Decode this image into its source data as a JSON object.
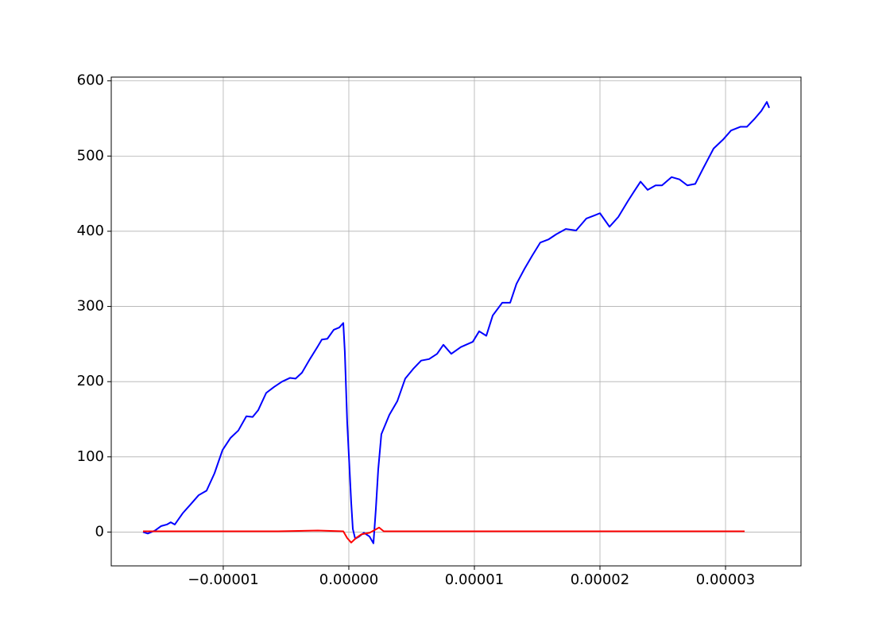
{
  "chart_data": {
    "type": "line",
    "xlim": [
      -1.892e-05,
      3.601e-05
    ],
    "ylim": [
      -45,
      605
    ],
    "xticks": [
      {
        "value": -1e-05,
        "label": "−0.00001"
      },
      {
        "value": 0,
        "label": "0.00000"
      },
      {
        "value": 1e-05,
        "label": "0.00001"
      },
      {
        "value": 2e-05,
        "label": "0.00002"
      },
      {
        "value": 3e-05,
        "label": "0.00003"
      }
    ],
    "yticks": [
      0,
      100,
      200,
      300,
      400,
      500,
      600
    ],
    "grid": true,
    "series": [
      {
        "color": "#0000ff",
        "x": [
          -1.639e-05,
          -1.601e-05,
          -1.544e-05,
          -1.494e-05,
          -1.449e-05,
          -1.418e-05,
          -1.386e-05,
          -1.323e-05,
          -1.259e-05,
          -1.196e-05,
          -1.133e-05,
          -1.07e-05,
          -1.006e-05,
          -9.43e-06,
          -8.8e-06,
          -8.16e-06,
          -7.66e-06,
          -7.22e-06,
          -6.58e-06,
          -5.95e-06,
          -5.32e-06,
          -4.68e-06,
          -4.24e-06,
          -3.73e-06,
          -3.1e-06,
          -2.47e-06,
          -2.15e-06,
          -1.71e-06,
          -1.2e-06,
          -7.6e-07,
          -4.4e-07,
          -3.2e-07,
          -1.3e-07,
          6e-08,
          1.9e-07,
          3.2e-07,
          5.1e-07,
          8.2e-07,
          1.2e-06,
          1.65e-06,
          1.96e-06,
          2.15e-06,
          2.34e-06,
          2.59e-06,
          2.91e-06,
          3.23e-06,
          3.86e-06,
          4.49e-06,
          5.13e-06,
          5.76e-06,
          6.39e-06,
          7.03e-06,
          7.53e-06,
          8.16e-06,
          8.92e-06,
          9.87e-06,
          1.038e-05,
          1.095e-05,
          1.146e-05,
          1.222e-05,
          1.285e-05,
          1.335e-05,
          1.399e-05,
          1.462e-05,
          1.525e-05,
          1.589e-05,
          1.652e-05,
          1.728e-05,
          1.81e-05,
          1.892e-05,
          1.956e-05,
          2e-05,
          2.076e-05,
          2.146e-05,
          2.222e-05,
          2.272e-05,
          2.323e-05,
          2.38e-05,
          2.443e-05,
          2.494e-05,
          2.57e-05,
          2.633e-05,
          2.696e-05,
          2.759e-05,
          2.823e-05,
          2.905e-05,
          2.981e-05,
          3.044e-05,
          3.12e-05,
          3.171e-05,
          3.234e-05,
          3.285e-05,
          3.329e-05,
          3.348e-05
        ],
        "values": [
          0,
          -2,
          2,
          8,
          10,
          13,
          10,
          25,
          37,
          49,
          55,
          78,
          109,
          125,
          135,
          154,
          153,
          162,
          185,
          193,
          200,
          205,
          204,
          212,
          230,
          247,
          256,
          257,
          269,
          272,
          278,
          240,
          146,
          83,
          39,
          4,
          -9,
          -6,
          -1,
          -6,
          -15,
          30,
          83,
          130,
          143,
          156,
          174,
          204,
          217,
          228,
          230,
          237,
          249,
          237,
          246,
          253,
          267,
          261,
          288,
          305,
          305,
          330,
          350,
          368,
          385,
          389,
          396,
          403,
          401,
          417,
          421,
          424,
          406,
          419,
          440,
          453,
          466,
          455,
          461,
          461,
          472,
          469,
          461,
          463,
          484,
          510,
          522,
          534,
          539,
          539,
          550,
          560,
          572,
          564
        ]
      },
      {
        "color": "#ff0000",
        "x": [
          -1.639e-05,
          -1.196e-05,
          -5.63e-06,
          -2.47e-06,
          -4.4e-07,
          -1.3e-07,
          1.9e-07,
          5.7e-07,
          1.01e-06,
          1.65e-06,
          2.09e-06,
          2.41e-06,
          2.78e-06,
          7.03e-06,
          1.335e-05,
          1.968e-05,
          2.601e-05,
          3.152e-05
        ],
        "values": [
          1,
          1,
          1,
          2,
          1,
          -8,
          -14,
          -8,
          -3,
          -1,
          3,
          6,
          1,
          1,
          1,
          1,
          1,
          1
        ]
      }
    ]
  }
}
